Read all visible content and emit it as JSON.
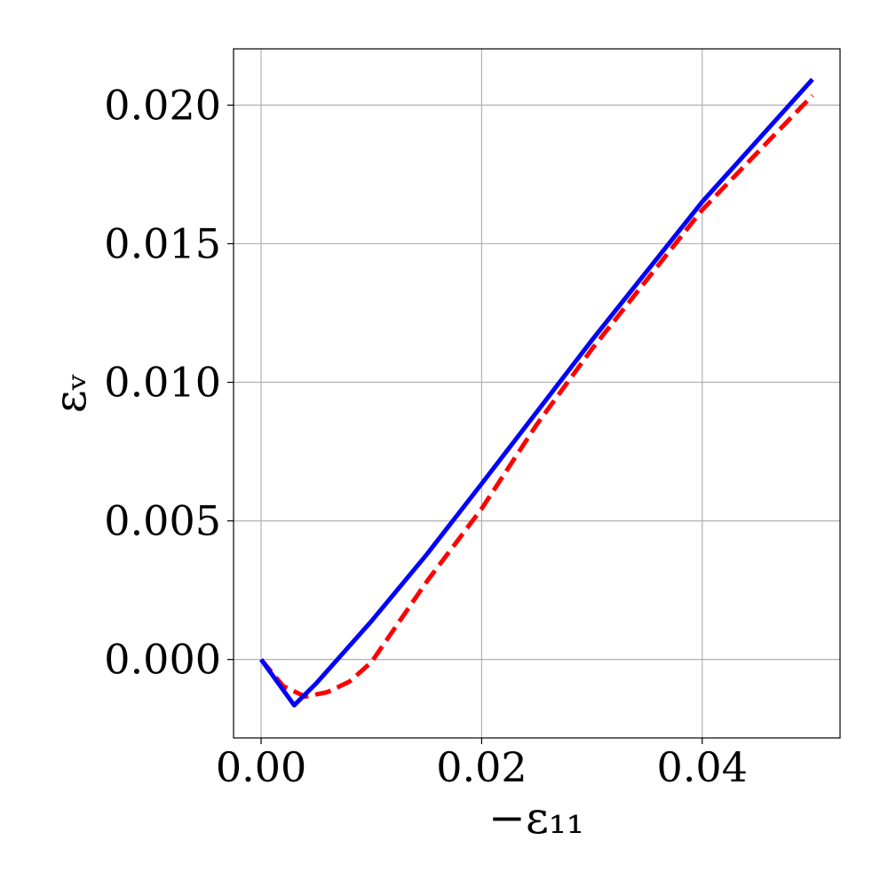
{
  "chart_data": {
    "type": "line",
    "xlabel": "−ε₁₁",
    "ylabel": "εᵥ",
    "xlim": [
      -0.0025,
      0.0525
    ],
    "ylim": [
      -0.00283,
      0.02203
    ],
    "xticks": [
      {
        "value": 0,
        "label": "0.00"
      },
      {
        "value": 0.02,
        "label": "0.02"
      },
      {
        "value": 0.04,
        "label": "0.04"
      }
    ],
    "yticks": [
      {
        "value": 0,
        "label": "0.000"
      },
      {
        "value": 0.005,
        "label": "0.005"
      },
      {
        "value": 0.01,
        "label": "0.010"
      },
      {
        "value": 0.015,
        "label": "0.015"
      },
      {
        "value": 0.02,
        "label": "0.020"
      }
    ],
    "grid": true,
    "series": [
      {
        "color": "#ff0000",
        "dash": true,
        "x": [
          0,
          0.002,
          0.004,
          0.006,
          0.008,
          0.01,
          0.015,
          0.02,
          0.025,
          0.03,
          0.04,
          0.05
        ],
        "values": [
          0,
          -0.00096,
          -0.00134,
          -0.00118,
          -0.0008,
          -0.0001,
          0.0028,
          0.00544,
          0.00848,
          0.0112,
          0.01622,
          0.02035
        ]
      },
      {
        "color": "#0000ff",
        "dash": false,
        "x": [
          0,
          0.003,
          0.005,
          0.01,
          0.015,
          0.02,
          0.03,
          0.04,
          0.05
        ],
        "values": [
          0,
          -0.00165,
          -0.00086,
          0.00138,
          0.00378,
          0.00634,
          0.01152,
          0.01651,
          0.02093
        ]
      }
    ]
  }
}
